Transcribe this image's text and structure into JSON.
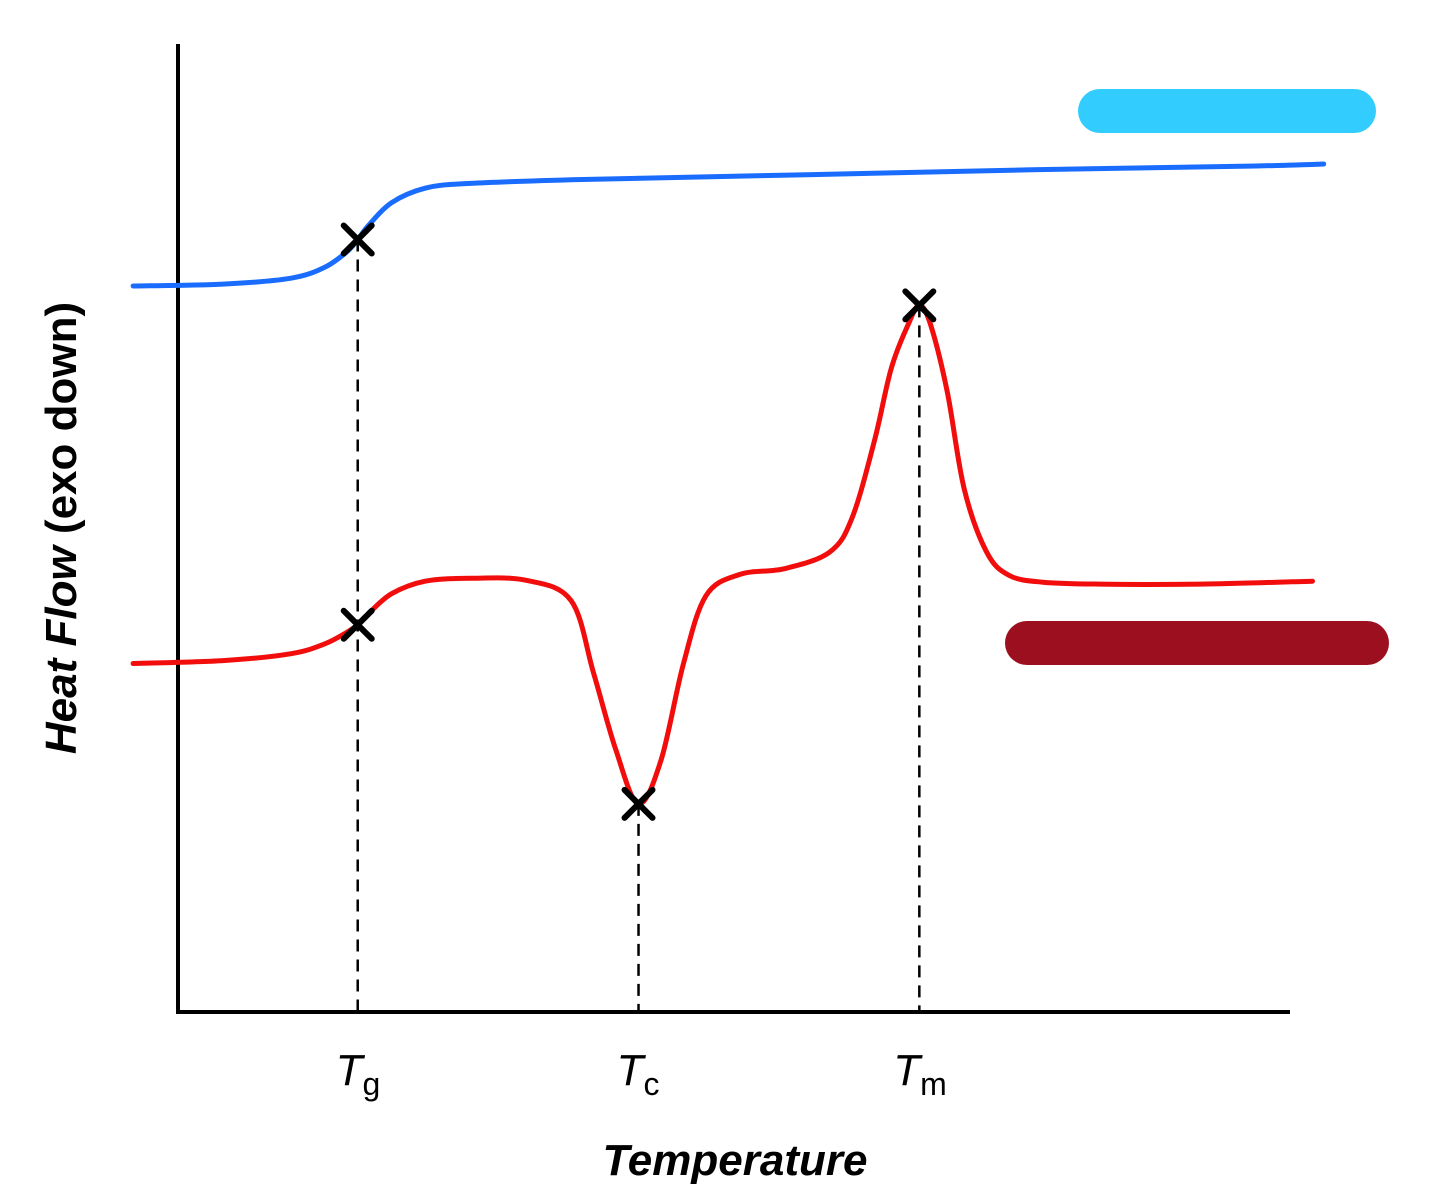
{
  "chart_data": {
    "type": "line",
    "title": "",
    "xlabel": "Temperature",
    "ylabel": {
      "italic": "Heat Flow",
      "upright": " (exo down)"
    },
    "x_ticks": [
      {
        "symbol": "T",
        "subscript": "g",
        "value": 20
      },
      {
        "symbol": "T",
        "subscript": "c",
        "value": 45
      },
      {
        "symbol": "T",
        "subscript": "m",
        "value": 70
      }
    ],
    "xlim": [
      4,
      103
    ],
    "ylim": [
      0,
      100
    ],
    "series": [
      {
        "name": "upper-trace",
        "color": "#1a6cff",
        "x": [
          0,
          8,
          14,
          17,
          19,
          20,
          21,
          23,
          26,
          30,
          40,
          60,
          80,
          100,
          106
        ],
        "y": [
          75.0,
          75.2,
          75.8,
          76.9,
          78.5,
          79.8,
          81.3,
          83.6,
          85.1,
          85.6,
          86.0,
          86.5,
          87.0,
          87.4,
          87.6
        ]
      },
      {
        "name": "lower-trace",
        "color": "#f20d0d",
        "x": [
          0,
          8,
          14,
          17,
          19,
          20,
          21,
          23,
          26,
          30,
          35,
          39,
          41,
          43,
          45,
          47,
          49,
          51,
          54,
          58,
          62,
          64,
          66,
          67.5,
          69,
          70,
          71,
          72.5,
          74,
          76,
          78,
          81,
          86,
          95,
          105
        ],
        "y": [
          36.0,
          36.3,
          37.0,
          38.0,
          39.2,
          40.0,
          41.2,
          43.2,
          44.5,
          44.8,
          44.6,
          42.5,
          35.0,
          27.0,
          21.5,
          26.0,
          36.0,
          43.0,
          45.2,
          45.8,
          47.5,
          51.0,
          59.0,
          66.5,
          71.0,
          73.0,
          71.0,
          64.0,
          54.0,
          47.5,
          45.1,
          44.4,
          44.2,
          44.2,
          44.5
        ]
      }
    ],
    "markers": [
      {
        "label": "Tg on upper trace",
        "x": 20,
        "y": 79.8,
        "symbol": "x"
      },
      {
        "label": "Tg on lower trace",
        "x": 20,
        "y": 40.0,
        "symbol": "x"
      },
      {
        "label": "Tc on lower trace",
        "x": 45,
        "y": 21.5,
        "symbol": "x"
      },
      {
        "label": "Tm on lower trace",
        "x": 70,
        "y": 73.0,
        "symbol": "x"
      }
    ],
    "guide_lines": [
      {
        "x": 20,
        "y_top": 79.8,
        "style": "dashed"
      },
      {
        "x": 45,
        "y_top": 21.5,
        "style": "dashed"
      },
      {
        "x": 70,
        "y_top": 73.0,
        "style": "dashed"
      }
    ],
    "legend_bars": [
      {
        "name": "upper-trace-label-bar",
        "color": "#33ccff"
      },
      {
        "name": "lower-trace-label-bar",
        "color": "#9b0f1f"
      }
    ],
    "grid": false,
    "legend": "right"
  }
}
